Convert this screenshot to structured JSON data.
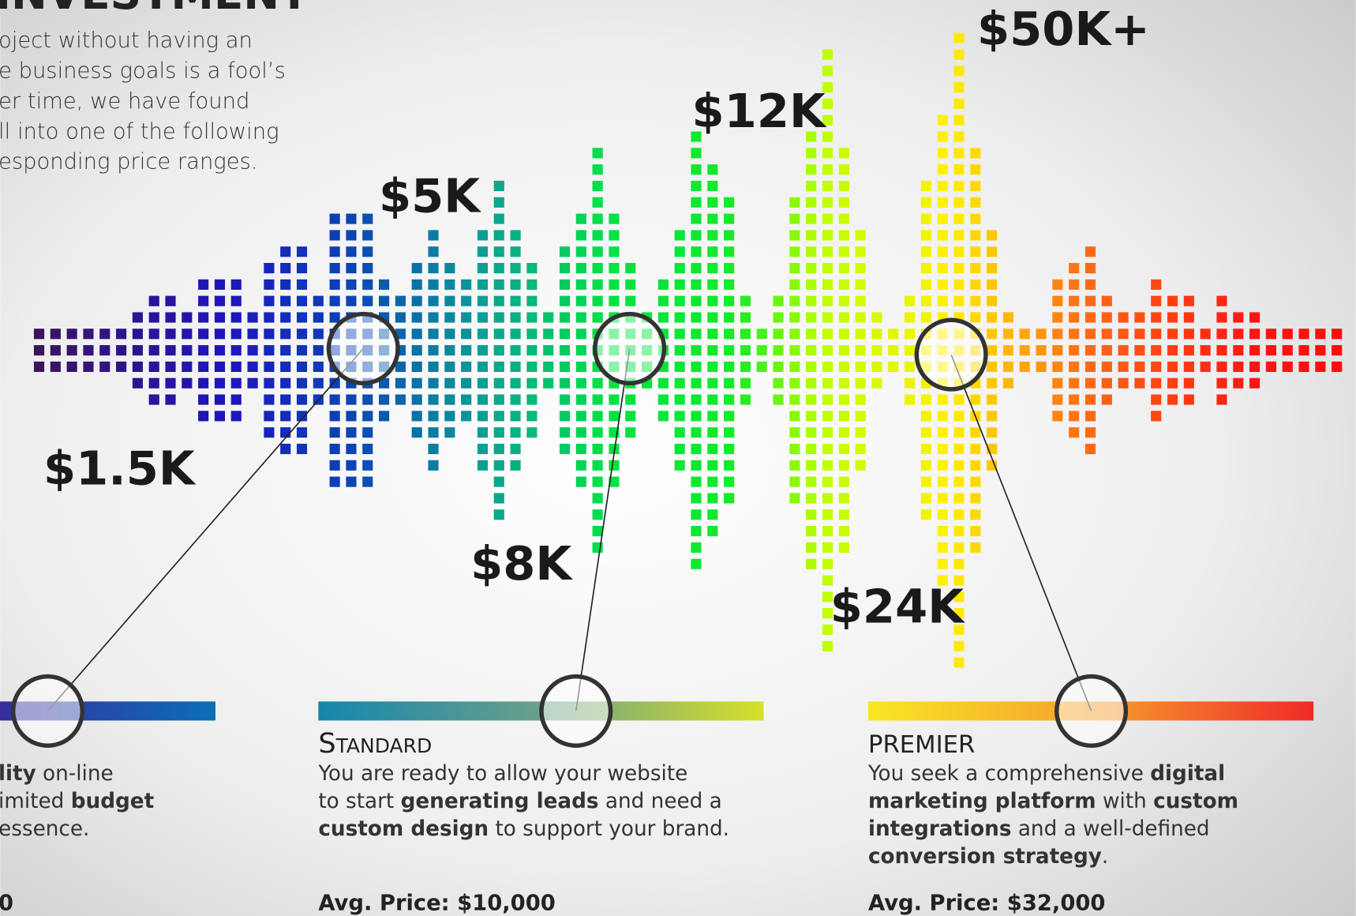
{
  "header": {
    "title": "INVESTMENT",
    "intro_lines": [
      "oject without having an",
      "e business goals is a fool’s",
      "er time, we have found",
      "ll into one of the following",
      "esponding price ranges."
    ]
  },
  "price_labels": [
    "$1.5K",
    "$5K",
    "$8K",
    "$12K",
    "$24K",
    "$50K+"
  ],
  "tiers": [
    {
      "lines": [
        [
          {
            "text": "lity",
            "bold": true
          },
          {
            "text": " on-line",
            "bold": false
          }
        ],
        [
          {
            "text": "imited ",
            "bold": false
          },
          {
            "text": "budget",
            "bold": true
          }
        ],
        [
          {
            "text": "essence.",
            "bold": false
          }
        ]
      ],
      "avg_price": "0"
    },
    {
      "name": "Standard",
      "lines": [
        [
          {
            "text": "You are ready to allow your website",
            "bold": false
          }
        ],
        [
          {
            "text": "to start ",
            "bold": false
          },
          {
            "text": "generating leads",
            "bold": true
          },
          {
            "text": " and need a",
            "bold": false
          }
        ],
        [
          {
            "text": "custom design",
            "bold": true
          },
          {
            "text": " to support your brand.",
            "bold": false
          }
        ]
      ],
      "avg_price": "Avg. Price: $10,000"
    },
    {
      "name": "PREMIER",
      "lines": [
        [
          {
            "text": "You seek a comprehensive ",
            "bold": false
          },
          {
            "text": "digital",
            "bold": true
          }
        ],
        [
          {
            "text": "marketing platform",
            "bold": true
          },
          {
            "text": " with ",
            "bold": false
          },
          {
            "text": "custom",
            "bold": true
          }
        ],
        [
          {
            "text": "integrations",
            "bold": true
          },
          {
            "text": " and a well-defined",
            "bold": false
          }
        ],
        [
          {
            "text": "conversion strategy",
            "bold": true
          },
          {
            "text": ".",
            "bold": false
          }
        ]
      ],
      "avg_price": "Avg. Price: $32,000"
    }
  ]
}
